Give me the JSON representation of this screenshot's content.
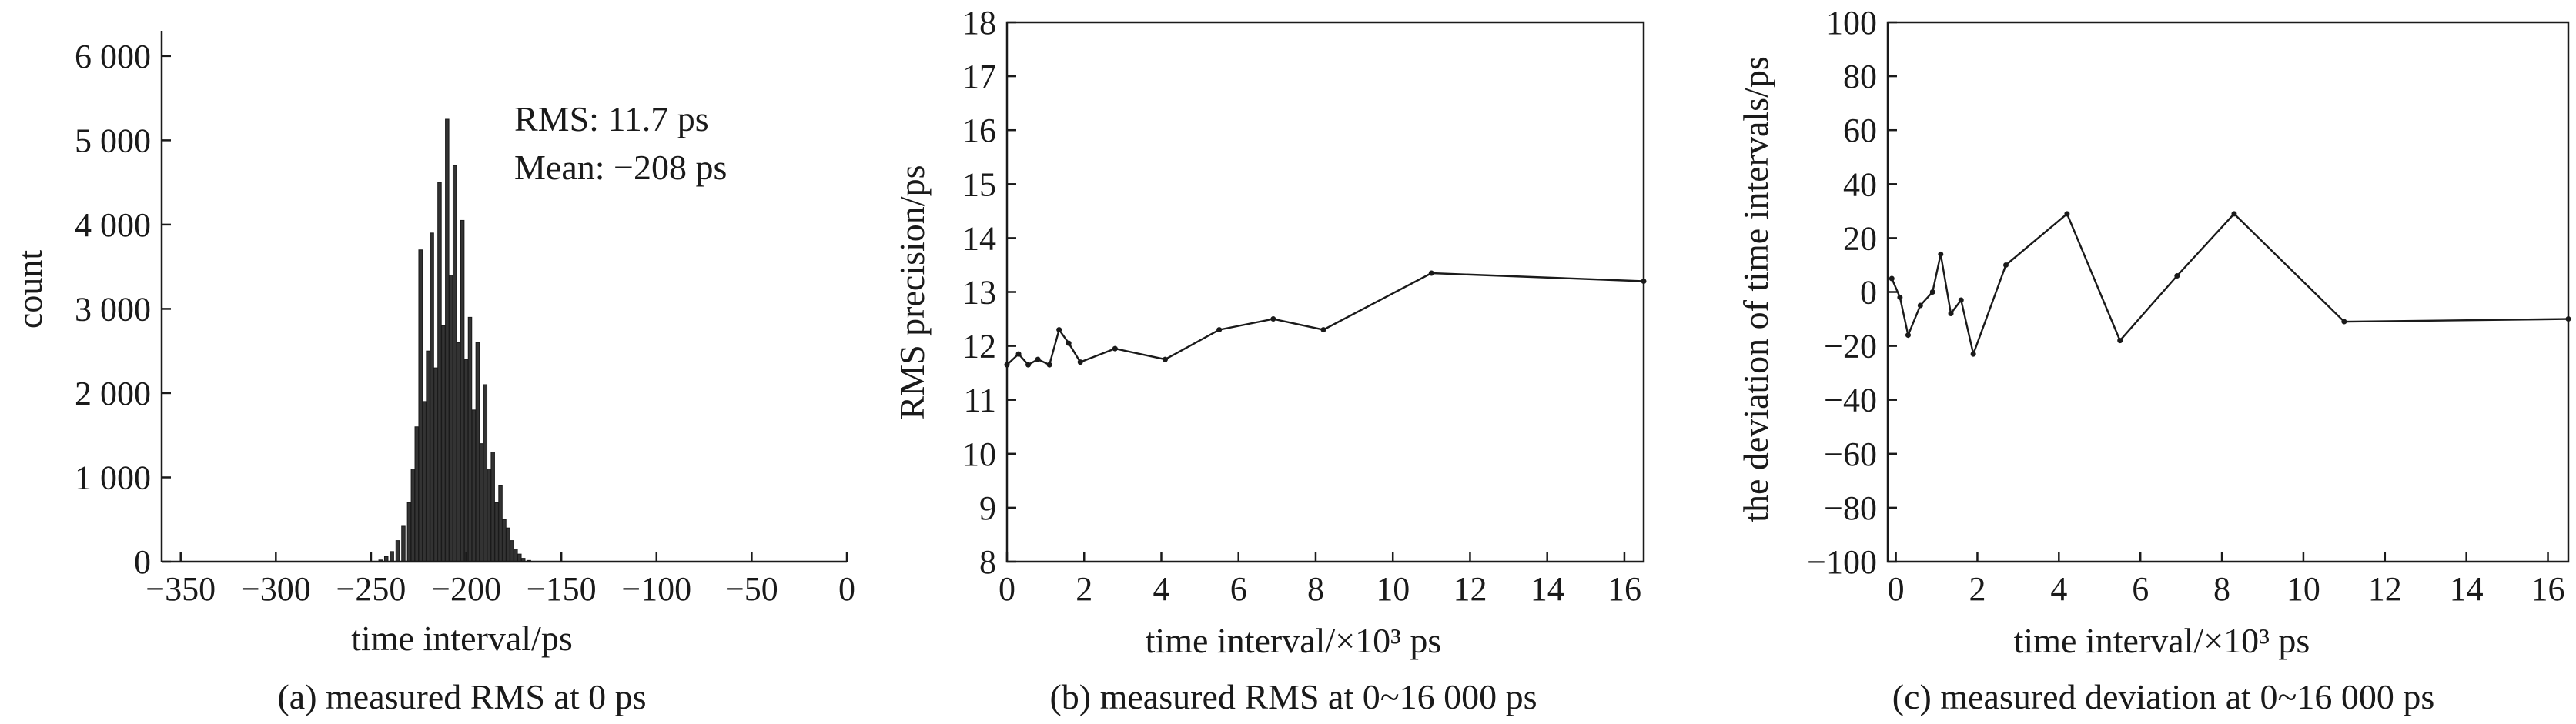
{
  "chart_data": [
    {
      "type": "bar",
      "xlabel": "time interval/ps",
      "ylabel": "count",
      "caption": "(a) measured RMS at 0 ps",
      "annotations": [
        "RMS: 11.7 ps",
        "Mean: −208 ps"
      ],
      "xlim": [
        -360,
        0
      ],
      "ylim": [
        0,
        6300
      ],
      "xticks": [
        -350,
        -300,
        -250,
        -200,
        -150,
        -100,
        -50,
        0
      ],
      "xtick_labels": [
        "−350",
        "−300",
        "−250",
        "−200",
        "−150",
        "−100",
        "−50",
        "0"
      ],
      "yticks": [
        0,
        1000,
        2000,
        3000,
        4000,
        5000,
        6000
      ],
      "ytick_labels": [
        "0",
        "1 000",
        "2 000",
        "3 000",
        "4 000",
        "5 000",
        "6 000"
      ],
      "x": [
        -245,
        -242,
        -239,
        -236,
        -233,
        -230,
        -228,
        -226,
        -224,
        -222,
        -220,
        -218,
        -216,
        -214,
        -212,
        -210,
        -208,
        -206,
        -204,
        -202,
        -200,
        -198,
        -196,
        -194,
        -192,
        -190,
        -188,
        -186,
        -184,
        -182,
        -180,
        -178,
        -176,
        -174,
        -172,
        -170,
        -167
      ],
      "values": [
        20,
        60,
        120,
        250,
        420,
        700,
        1100,
        1600,
        3700,
        1900,
        2500,
        3900,
        2300,
        4500,
        2800,
        5250,
        3400,
        4700,
        2600,
        4050,
        2400,
        2900,
        1800,
        2600,
        1400,
        2100,
        1100,
        1300,
        700,
        900,
        500,
        400,
        250,
        150,
        90,
        40,
        15
      ]
    },
    {
      "type": "line",
      "xlabel": "time interval/×10³ ps",
      "ylabel": "RMS precision/ps",
      "caption": "(b) measured RMS at 0~16 000 ps",
      "xlim": [
        0,
        16.5
      ],
      "ylim": [
        8,
        18
      ],
      "xticks": [
        0,
        2,
        4,
        6,
        8,
        10,
        12,
        14,
        16
      ],
      "yticks": [
        8,
        9,
        10,
        11,
        12,
        13,
        14,
        15,
        16,
        17,
        18
      ],
      "x": [
        0,
        0.3,
        0.55,
        0.8,
        1.1,
        1.35,
        1.6,
        1.9,
        2.8,
        4.1,
        5.5,
        6.9,
        8.2,
        11,
        16.5
      ],
      "y": [
        11.65,
        11.85,
        11.65,
        11.75,
        11.65,
        12.3,
        12.05,
        11.7,
        11.95,
        11.75,
        12.3,
        12.5,
        12.3,
        13.35,
        13.2
      ]
    },
    {
      "type": "line",
      "xlabel": "time interval/×10³ ps",
      "ylabel": "the deviation of time intervals/ps",
      "caption": "(c) measured deviation at 0~16 000 ps",
      "xlim": [
        -0.2,
        16.5
      ],
      "ylim": [
        -100,
        100
      ],
      "xticks": [
        0,
        2,
        4,
        6,
        8,
        10,
        12,
        14,
        16
      ],
      "yticks": [
        -100,
        -80,
        -60,
        -40,
        -20,
        0,
        20,
        40,
        60,
        80,
        100
      ],
      "ytick_labels": [
        "−100",
        "−80",
        "−60",
        "−40",
        "−20",
        "0",
        "20",
        "40",
        "60",
        "80",
        "100"
      ],
      "x": [
        -0.1,
        0.1,
        0.3,
        0.6,
        0.9,
        1.1,
        1.35,
        1.6,
        1.9,
        2.7,
        4.2,
        5.5,
        6.9,
        8.3,
        11,
        16.5
      ],
      "y": [
        5,
        -2,
        -16,
        -5,
        0,
        14,
        -8,
        -3,
        -23,
        10,
        29,
        -18,
        6,
        29,
        -11,
        -10
      ]
    }
  ]
}
